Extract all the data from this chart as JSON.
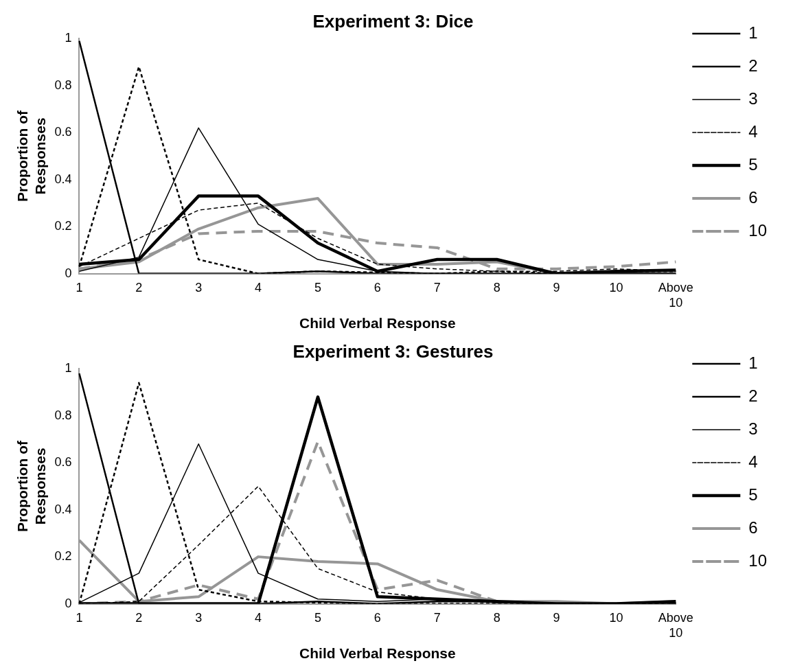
{
  "chart_data": [
    {
      "type": "line",
      "title": "Experiment 3: Dice",
      "xlabel": "Child Verbal Response",
      "ylabel": "Proportion of Responses",
      "categories": [
        "1",
        "2",
        "3",
        "4",
        "5",
        "6",
        "7",
        "8",
        "9",
        "10",
        "Above 10"
      ],
      "ylim": [
        0,
        1
      ],
      "yticks": [
        0,
        0.2,
        0.4,
        0.6,
        0.8,
        1
      ],
      "grid": false,
      "legend": "right",
      "marker": "none",
      "series": [
        {
          "name": "1",
          "color": "#000000",
          "line_style": "solid",
          "values": [
            0.99,
            0,
            0,
            0,
            0.01,
            0,
            0,
            0,
            0,
            0,
            0
          ]
        },
        {
          "name": "2",
          "color": "#000000",
          "line_style": "dotted",
          "values": [
            0.03,
            0.88,
            0.06,
            0,
            0.01,
            0.005,
            0,
            0.01,
            0,
            0.01,
            0.01
          ]
        },
        {
          "name": "3",
          "color": "#000000",
          "line_style": "solid",
          "values": [
            0.01,
            0.07,
            0.62,
            0.21,
            0.06,
            0.01,
            0,
            0,
            0,
            0,
            0
          ]
        },
        {
          "name": "4",
          "color": "#000000",
          "line_style": "dashed",
          "values": [
            0.03,
            0.15,
            0.27,
            0.3,
            0.15,
            0.04,
            0.02,
            0.01,
            0.01,
            0.02,
            0.01
          ]
        },
        {
          "name": "5",
          "color": "#000000",
          "line_style": "solid",
          "values": [
            0.04,
            0.06,
            0.33,
            0.33,
            0.13,
            0.01,
            0.06,
            0.06,
            0,
            0.01,
            0.015
          ]
        },
        {
          "name": "6",
          "color": "#969696",
          "line_style": "solid",
          "values": [
            0.02,
            0.05,
            0.19,
            0.28,
            0.32,
            0.04,
            0.04,
            0.05,
            0,
            0,
            0
          ]
        },
        {
          "name": "10",
          "color": "#969696",
          "line_style": "dashed",
          "values": [
            0.02,
            0.06,
            0.17,
            0.18,
            0.18,
            0.13,
            0.11,
            0.02,
            0.02,
            0.03,
            0.05
          ]
        }
      ]
    },
    {
      "type": "line",
      "title": "Experiment 3: Gestures",
      "xlabel": "Child Verbal Response",
      "ylabel": "Proportion of Responses",
      "categories": [
        "1",
        "2",
        "3",
        "4",
        "5",
        "6",
        "7",
        "8",
        "9",
        "10",
        "Above 10"
      ],
      "ylim": [
        0,
        1
      ],
      "yticks": [
        0,
        0.2,
        0.4,
        0.6,
        0.8,
        1
      ],
      "grid": false,
      "legend": "right",
      "marker": "none",
      "series": [
        {
          "name": "1",
          "color": "#000000",
          "line_style": "solid",
          "values": [
            0.98,
            0,
            0,
            0,
            0.01,
            0,
            0.01,
            0.01,
            0,
            0,
            0
          ]
        },
        {
          "name": "2",
          "color": "#000000",
          "line_style": "dotted",
          "values": [
            0,
            0.94,
            0.06,
            0.01,
            0.005,
            0,
            0,
            0,
            0,
            0,
            0
          ]
        },
        {
          "name": "3",
          "color": "#000000",
          "line_style": "solid",
          "values": [
            0.005,
            0.13,
            0.68,
            0.13,
            0.02,
            0.01,
            0.02,
            0.005,
            0,
            0,
            0.005
          ]
        },
        {
          "name": "4",
          "color": "#000000",
          "line_style": "dashed",
          "values": [
            0,
            0.01,
            0.25,
            0.5,
            0.15,
            0.05,
            0.02,
            0.01,
            0,
            0,
            0
          ]
        },
        {
          "name": "5",
          "color": "#000000",
          "line_style": "solid",
          "values": [
            0,
            0,
            0,
            0,
            0.88,
            0.03,
            0.02,
            0.01,
            0,
            0,
            0.01
          ]
        },
        {
          "name": "6",
          "color": "#969696",
          "line_style": "solid",
          "values": [
            0.27,
            0.01,
            0.03,
            0.2,
            0.18,
            0.17,
            0.06,
            0.01,
            0.01,
            0,
            0.01
          ]
        },
        {
          "name": "10",
          "color": "#969696",
          "line_style": "dashed",
          "values": [
            0,
            0.01,
            0.08,
            0.02,
            0.69,
            0.06,
            0.1,
            0.01,
            0,
            0,
            0
          ]
        }
      ]
    }
  ]
}
